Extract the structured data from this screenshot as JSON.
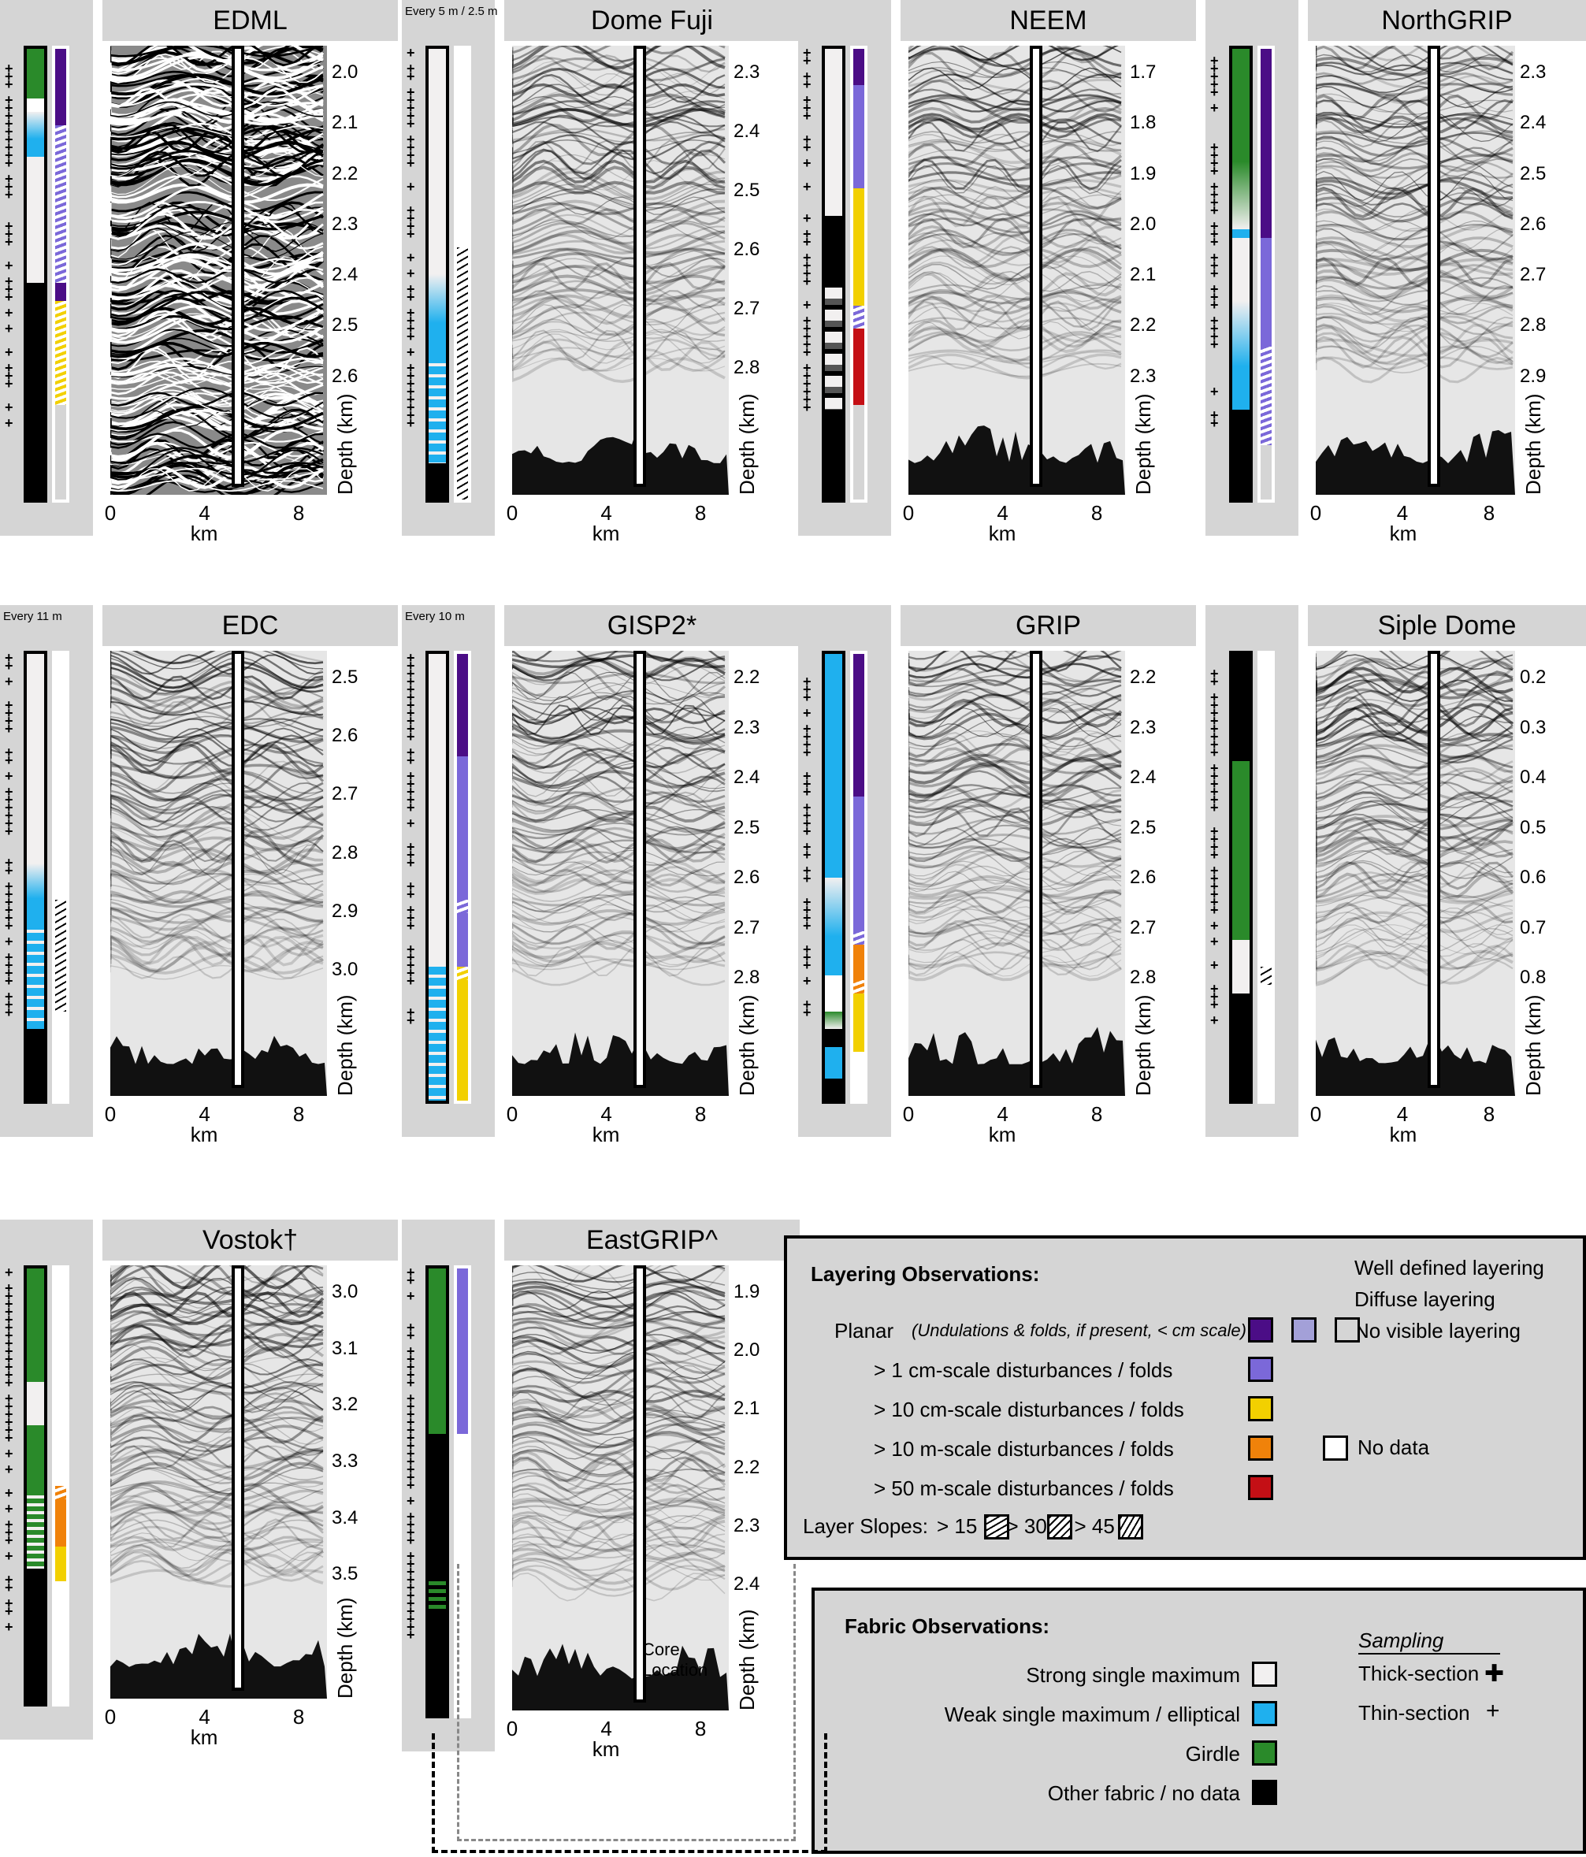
{
  "panels": [
    {
      "id": "edml",
      "title": "EDML",
      "depth_ticks": [
        "2.0",
        "2.1",
        "2.2",
        "2.3",
        "2.4",
        "2.5",
        "2.6"
      ],
      "x_ticks": [
        "0",
        "4",
        "8"
      ],
      "x_label": "km",
      "y_label": "Depth (km)",
      "sampling_note": "",
      "fabric": [
        {
          "from": 0,
          "to": 0.11,
          "c": "#2a8a2a"
        },
        {
          "from": 0.11,
          "to": 0.14,
          "c": "#ffffff"
        },
        {
          "from": 0.14,
          "to": 0.24,
          "c": "grad-blue"
        },
        {
          "from": 0.24,
          "to": 0.52,
          "c": "#f2f0f0"
        },
        {
          "from": 0.52,
          "to": 1,
          "c": "#000000"
        }
      ],
      "layering": [
        {
          "from": 0,
          "to": 0.17,
          "c": "#4b0d86"
        },
        {
          "from": 0.17,
          "to": 0.52,
          "c": "hatch-purple"
        },
        {
          "from": 0.52,
          "to": 0.56,
          "c": "#4b0d86"
        },
        {
          "from": 0.56,
          "to": 0.79,
          "c": "hatch-yellow"
        },
        {
          "from": 0.79,
          "to": 1,
          "c": "#d5d5d5"
        }
      ]
    },
    {
      "id": "domefuji",
      "title": "Dome Fuji",
      "depth_ticks": [
        "2.3",
        "2.4",
        "2.5",
        "2.6",
        "2.7",
        "2.8"
      ],
      "x_ticks": [
        "0",
        "4",
        "8"
      ],
      "x_label": "km",
      "y_label": "Depth (km)",
      "sampling_note": "Every 5 m / 2.5 m",
      "fabric": [
        {
          "from": 0,
          "to": 0.5,
          "c": "#f2f0f0"
        },
        {
          "from": 0.5,
          "to": 0.68,
          "c": "grad-blue"
        },
        {
          "from": 0.68,
          "to": 0.92,
          "c": "stripe-blue"
        },
        {
          "from": 0.92,
          "to": 1,
          "c": "#000000"
        }
      ],
      "layering": [
        {
          "from": 0,
          "to": 0.44,
          "c": "#ffffff"
        },
        {
          "from": 0.44,
          "to": 1,
          "c": "hatch-black"
        }
      ]
    },
    {
      "id": "neem",
      "title": "NEEM",
      "depth_ticks": [
        "1.7",
        "1.8",
        "1.9",
        "2.0",
        "2.1",
        "2.2",
        "2.3"
      ],
      "x_ticks": [
        "0",
        "4",
        "8"
      ],
      "x_label": "km",
      "y_label": "Depth (km)",
      "sampling_note": "",
      "fabric": [
        {
          "from": 0,
          "to": 0.37,
          "c": "#f2f0f0"
        },
        {
          "from": 0.37,
          "to": 0.53,
          "c": "#000000"
        },
        {
          "from": 0.53,
          "to": 0.8,
          "c": "grad-grey"
        },
        {
          "from": 0.8,
          "to": 1,
          "c": "#000000"
        }
      ],
      "layering": [
        {
          "from": 0,
          "to": 0.08,
          "c": "#4b0d86"
        },
        {
          "from": 0.08,
          "to": 0.31,
          "c": "#7b68d9"
        },
        {
          "from": 0.31,
          "to": 0.57,
          "c": "#f2d000"
        },
        {
          "from": 0.57,
          "to": 0.62,
          "c": "hatch-purple"
        },
        {
          "from": 0.62,
          "to": 0.79,
          "c": "#c40f15"
        },
        {
          "from": 0.79,
          "to": 1,
          "c": "#d5d5d5"
        }
      ]
    },
    {
      "id": "northgrip",
      "title": "NorthGRIP",
      "depth_ticks": [
        "2.3",
        "2.4",
        "2.5",
        "2.6",
        "2.7",
        "2.8",
        "2.9"
      ],
      "x_ticks": [
        "0",
        "4",
        "8"
      ],
      "x_label": "km",
      "y_label": "Depth (km)",
      "sampling_note": "",
      "fabric": [
        {
          "from": 0,
          "to": 0.25,
          "c": "#2a8a2a"
        },
        {
          "from": 0.25,
          "to": 0.4,
          "c": "grad-green"
        },
        {
          "from": 0.4,
          "to": 0.42,
          "c": "#1fb0ee"
        },
        {
          "from": 0.42,
          "to": 0.56,
          "c": "#f2f0f0"
        },
        {
          "from": 0.56,
          "to": 0.8,
          "c": "grad-blue"
        },
        {
          "from": 0.8,
          "to": 1,
          "c": "#000000"
        }
      ],
      "layering": [
        {
          "from": 0,
          "to": 0.42,
          "c": "#4b0d86"
        },
        {
          "from": 0.42,
          "to": 0.66,
          "c": "#7b68d9"
        },
        {
          "from": 0.66,
          "to": 0.88,
          "c": "hatch-purple"
        },
        {
          "from": 0.88,
          "to": 1,
          "c": "#d5d5d5"
        }
      ]
    },
    {
      "id": "edc",
      "title": "EDC",
      "depth_ticks": [
        "2.5",
        "2.6",
        "2.7",
        "2.8",
        "2.9",
        "3.0"
      ],
      "x_ticks": [
        "0",
        "4",
        "8"
      ],
      "x_label": "km",
      "y_label": "Depth (km)",
      "sampling_note": "Every 11 m",
      "fabric": [
        {
          "from": 0,
          "to": 0.47,
          "c": "#f2f0f0"
        },
        {
          "from": 0.47,
          "to": 0.6,
          "c": "grad-blue"
        },
        {
          "from": 0.6,
          "to": 0.84,
          "c": "stripe-blue"
        },
        {
          "from": 0.84,
          "to": 1,
          "c": "#000000"
        }
      ],
      "layering": [
        {
          "from": 0,
          "to": 0.55,
          "c": "#ffffff"
        },
        {
          "from": 0.55,
          "to": 0.8,
          "c": "hatch-black"
        },
        {
          "from": 0.8,
          "to": 1,
          "c": "#ffffff"
        }
      ]
    },
    {
      "id": "gisp2",
      "title": "GISP2*",
      "depth_ticks": [
        "2.2",
        "2.3",
        "2.4",
        "2.5",
        "2.6",
        "2.7",
        "2.8"
      ],
      "x_ticks": [
        "0",
        "4",
        "8"
      ],
      "x_label": "km",
      "y_label": "Depth (km)",
      "sampling_note": "Every 10 m",
      "fabric": [
        {
          "from": 0,
          "to": 0.7,
          "c": "#f2f0f0"
        },
        {
          "from": 0.7,
          "to": 1,
          "c": "stripe-blue"
        }
      ],
      "layering": [
        {
          "from": 0,
          "to": 0.23,
          "c": "#4b0d86"
        },
        {
          "from": 0.23,
          "to": 0.55,
          "c": "#7b68d9"
        },
        {
          "from": 0.55,
          "to": 0.58,
          "c": "hatch-purple"
        },
        {
          "from": 0.58,
          "to": 0.7,
          "c": "#7b68d9"
        },
        {
          "from": 0.7,
          "to": 0.73,
          "c": "hatch-yellow"
        },
        {
          "from": 0.73,
          "to": 1,
          "c": "#f2d000"
        }
      ]
    },
    {
      "id": "grip",
      "title": "GRIP",
      "depth_ticks": [
        "2.2",
        "2.3",
        "2.4",
        "2.5",
        "2.6",
        "2.7",
        "2.8"
      ],
      "x_ticks": [
        "0",
        "4",
        "8"
      ],
      "x_label": "km",
      "y_label": "Depth (km)",
      "sampling_note": "",
      "fabric": [
        {
          "from": 0,
          "to": 0.5,
          "c": "#1fb0ee"
        },
        {
          "from": 0.5,
          "to": 0.72,
          "c": "grad-blue"
        },
        {
          "from": 0.72,
          "to": 0.8,
          "c": "#ffffff"
        },
        {
          "from": 0.8,
          "to": 0.84,
          "c": "grad-green"
        },
        {
          "from": 0.84,
          "to": 0.88,
          "c": "#000000"
        },
        {
          "from": 0.88,
          "to": 0.95,
          "c": "#1fb0ee"
        },
        {
          "from": 0.95,
          "to": 1,
          "c": "#000000"
        }
      ],
      "layering": [
        {
          "from": 0,
          "to": 0.32,
          "c": "#4b0d86"
        },
        {
          "from": 0.32,
          "to": 0.62,
          "c": "#7b68d9"
        },
        {
          "from": 0.62,
          "to": 0.65,
          "c": "hatch-purple"
        },
        {
          "from": 0.65,
          "to": 0.73,
          "c": "#f0820a"
        },
        {
          "from": 0.73,
          "to": 0.76,
          "c": "hatch-orange"
        },
        {
          "from": 0.76,
          "to": 0.89,
          "c": "#f2d000"
        },
        {
          "from": 0.89,
          "to": 1,
          "c": "#ffffff"
        }
      ]
    },
    {
      "id": "sipledome",
      "title": "Siple Dome",
      "depth_ticks": [
        "0.2",
        "0.3",
        "0.4",
        "0.5",
        "0.6",
        "0.7",
        "0.8"
      ],
      "x_ticks": [
        "0",
        "4",
        "8"
      ],
      "x_label": "km",
      "y_label": "Depth (km)",
      "sampling_note": "",
      "fabric": [
        {
          "from": 0,
          "to": 0.24,
          "c": "#000000"
        },
        {
          "from": 0.24,
          "to": 0.64,
          "c": "#2a8a2a"
        },
        {
          "from": 0.64,
          "to": 0.76,
          "c": "#f2f0f0"
        },
        {
          "from": 0.76,
          "to": 1,
          "c": "#000000"
        }
      ],
      "layering": [
        {
          "from": 0,
          "to": 0.7,
          "c": "#ffffff"
        },
        {
          "from": 0.7,
          "to": 0.74,
          "c": "hatch-black"
        },
        {
          "from": 0.74,
          "to": 1,
          "c": "#ffffff"
        }
      ]
    },
    {
      "id": "vostok",
      "title": "Vostok†",
      "depth_ticks": [
        "3.0",
        "3.1",
        "3.2",
        "3.3",
        "3.4",
        "3.5"
      ],
      "x_ticks": [
        "0",
        "4",
        "8"
      ],
      "x_label": "km",
      "y_label": "Depth (km)",
      "sampling_note": "",
      "fabric": [
        {
          "from": 0,
          "to": 0.26,
          "c": "#2a8a2a"
        },
        {
          "from": 0.26,
          "to": 0.36,
          "c": "#f2f0f0"
        },
        {
          "from": 0.36,
          "to": 0.51,
          "c": "#2a8a2a"
        },
        {
          "from": 0.51,
          "to": 0.62,
          "c": "stripe-green"
        },
        {
          "from": 0.62,
          "to": 0.69,
          "c": "stripe-green"
        },
        {
          "from": 0.69,
          "to": 1,
          "c": "#000000"
        }
      ],
      "layering": [
        {
          "from": 0,
          "to": 0.5,
          "c": "#ffffff"
        },
        {
          "from": 0.5,
          "to": 0.53,
          "c": "hatch-orange"
        },
        {
          "from": 0.53,
          "to": 0.64,
          "c": "#f0820a"
        },
        {
          "from": 0.64,
          "to": 0.72,
          "c": "#f2d000"
        },
        {
          "from": 0.72,
          "to": 1,
          "c": "#ffffff"
        }
      ]
    },
    {
      "id": "eastgrip",
      "title": "EastGRIP^",
      "depth_ticks": [
        "1.9",
        "2.0",
        "2.1",
        "2.2",
        "2.3",
        "2.4"
      ],
      "x_ticks": [
        "0",
        "4",
        "8"
      ],
      "x_label": "km",
      "y_label": "Depth (km)",
      "sampling_note": "",
      "core_location": "Core Location",
      "fabric": [
        {
          "from": 0,
          "to": 0.37,
          "c": "#2a8a2a"
        },
        {
          "from": 0.37,
          "to": 0.7,
          "c": "#000000"
        },
        {
          "from": 0.7,
          "to": 0.77,
          "c": "stripe-green-on-black"
        },
        {
          "from": 0.77,
          "to": 1,
          "c": "#000000"
        }
      ],
      "layering": [
        {
          "from": 0,
          "to": 0.37,
          "c": "#7b68d9"
        },
        {
          "from": 0.37,
          "to": 1,
          "c": "#ffffff"
        }
      ]
    }
  ],
  "legend_layering": {
    "title": "Layering Observations:",
    "well_defined": "Well defined layering",
    "diffuse": "Diffuse layering",
    "no_visible": "No visible layering",
    "planar": "Planar",
    "planar_note": "(Undulations & folds, if present, < cm scale)",
    "rows": [
      {
        "label": "> 1   cm-scale disturbances / folds",
        "color": "#7b68d9"
      },
      {
        "label": "> 10 cm-scale disturbances / folds",
        "color": "#f2d000"
      },
      {
        "label": "> 10   m-scale disturbances / folds",
        "color": "#f0820a"
      },
      {
        "label": "> 50   m-scale disturbances / folds",
        "color": "#c40f15"
      }
    ],
    "no_data": "No data",
    "slopes_label": "Layer Slopes:",
    "slope_15": "> 15",
    "slope_30": ", > 30",
    "slope_45": ", > 45",
    "deg": "°",
    "colors": {
      "well": "#4b0d86",
      "diffuse": "#a3a0d8",
      "none": "#d5d5d5"
    }
  },
  "legend_fabric": {
    "title": "Fabric Observations:",
    "rows": [
      {
        "label": "Strong single maximum",
        "color": "#f2f0f0"
      },
      {
        "label": "Weak single maximum / elliptical",
        "color": "#1fb0ee"
      },
      {
        "label": "Girdle",
        "color": "#2a8a2a"
      },
      {
        "label": "Other fabric / no data",
        "color": "#000000"
      }
    ],
    "sampling": "Sampling",
    "thick": "Thick-section",
    "thin": "Thin-section",
    "thick_symbol": "✚",
    "thin_symbol": "+"
  }
}
